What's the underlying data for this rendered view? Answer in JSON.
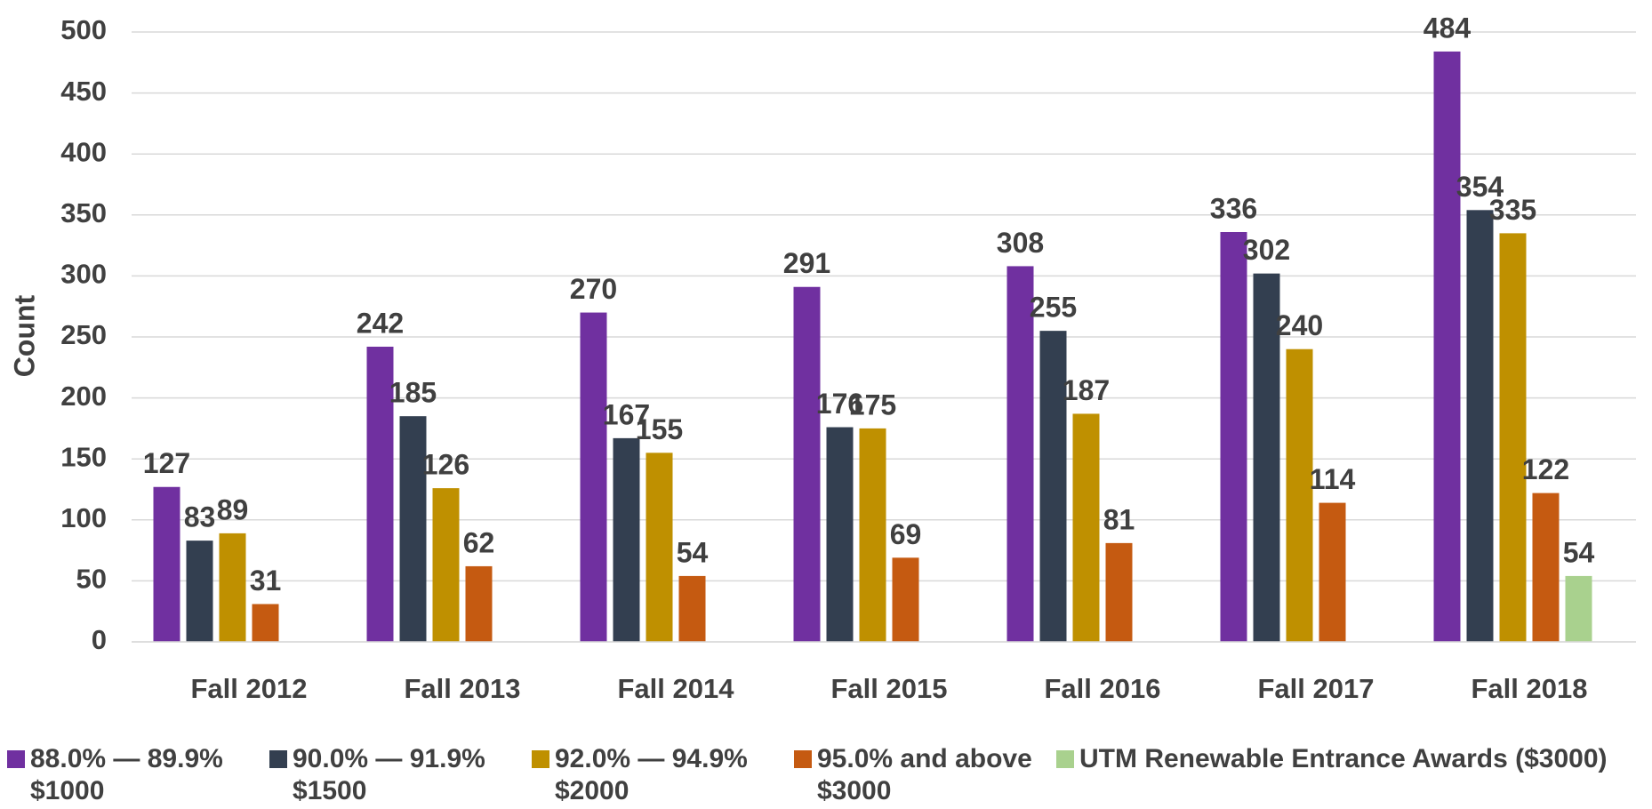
{
  "chart_data": {
    "type": "bar",
    "y_label": "Count",
    "categories": [
      "Fall 2012",
      "Fall 2013",
      "Fall 2014",
      "Fall 2015",
      "Fall 2016",
      "Fall 2017",
      "Fall 2018"
    ],
    "series": [
      {
        "name": "88.0% — 89.9% $1000",
        "color": "#7030a0",
        "values": [
          127,
          242,
          270,
          291,
          308,
          336,
          484
        ]
      },
      {
        "name": "90.0% — 91.9% $1500",
        "color": "#333f50",
        "values": [
          83,
          185,
          167,
          176,
          255,
          302,
          354
        ]
      },
      {
        "name": "92.0% — 94.9% $2000",
        "color": "#bf9000",
        "values": [
          89,
          126,
          155,
          175,
          187,
          240,
          335
        ]
      },
      {
        "name": "95.0% and above $3000",
        "color": "#c55a11",
        "values": [
          31,
          62,
          54,
          69,
          81,
          114,
          122
        ]
      },
      {
        "name": "UTM Renewable Entrance Awards ($3000)",
        "color": "#a9d18e",
        "values": [
          null,
          null,
          null,
          null,
          null,
          null,
          54
        ]
      }
    ],
    "ylim": [
      0,
      500
    ],
    "yticks": [
      0,
      50,
      100,
      150,
      200,
      250,
      300,
      350,
      400,
      450,
      500
    ],
    "grid": true,
    "legend": "bottom"
  }
}
